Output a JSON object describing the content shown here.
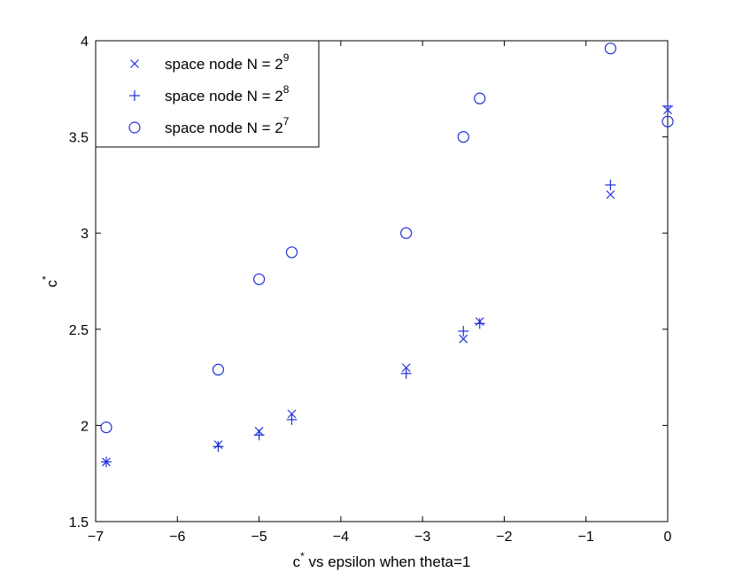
{
  "chart_data": {
    "type": "scatter",
    "title": "",
    "xlabel": {
      "prefix": "c",
      "sup": "*",
      "rest": " vs epsilon when theta=1"
    },
    "ylabel": {
      "main": "c",
      "sup": "*"
    },
    "xlim": [
      -7,
      0
    ],
    "ylim": [
      1.5,
      4
    ],
    "xticks": [
      -7,
      -6,
      -5,
      -4,
      -3,
      -2,
      -1,
      0
    ],
    "yticks": [
      1.5,
      2,
      2.5,
      3,
      3.5,
      4
    ],
    "xtick_labels": [
      "−7",
      "−6",
      "−5",
      "−4",
      "−3",
      "−2",
      "−1",
      "0"
    ],
    "ytick_labels": [
      "1.5",
      "2",
      "2.5",
      "3",
      "3.5",
      "4"
    ],
    "grid": false,
    "legend_position": "top-left",
    "color": "#1f2fd6",
    "series": [
      {
        "name": "space node N = 2",
        "name_sup": "9",
        "marker": "x",
        "points": [
          [
            -6.87,
            1.81
          ],
          [
            -5.5,
            1.9
          ],
          [
            -5.0,
            1.97
          ],
          [
            -4.6,
            2.06
          ],
          [
            -3.2,
            2.3
          ],
          [
            -2.5,
            2.45
          ],
          [
            -2.3,
            2.54
          ],
          [
            -0.7,
            3.2
          ],
          [
            0.0,
            3.64
          ]
        ]
      },
      {
        "name": "space node N = 2",
        "name_sup": "8",
        "marker": "+",
        "points": [
          [
            -6.87,
            1.81
          ],
          [
            -5.5,
            1.89
          ],
          [
            -5.0,
            1.95
          ],
          [
            -4.6,
            2.03
          ],
          [
            -3.2,
            2.27
          ],
          [
            -2.5,
            2.49
          ],
          [
            -2.3,
            2.53
          ],
          [
            -0.7,
            3.25
          ],
          [
            0.0,
            3.66
          ]
        ]
      },
      {
        "name": "space node N = 2",
        "name_sup": "7",
        "marker": "o",
        "points": [
          [
            -6.87,
            1.99
          ],
          [
            -5.5,
            2.29
          ],
          [
            -5.0,
            2.76
          ],
          [
            -4.6,
            2.9
          ],
          [
            -3.2,
            3.0
          ],
          [
            -2.5,
            3.5
          ],
          [
            -2.3,
            3.7
          ],
          [
            -0.7,
            3.96
          ],
          [
            0.0,
            3.58
          ]
        ]
      }
    ]
  }
}
